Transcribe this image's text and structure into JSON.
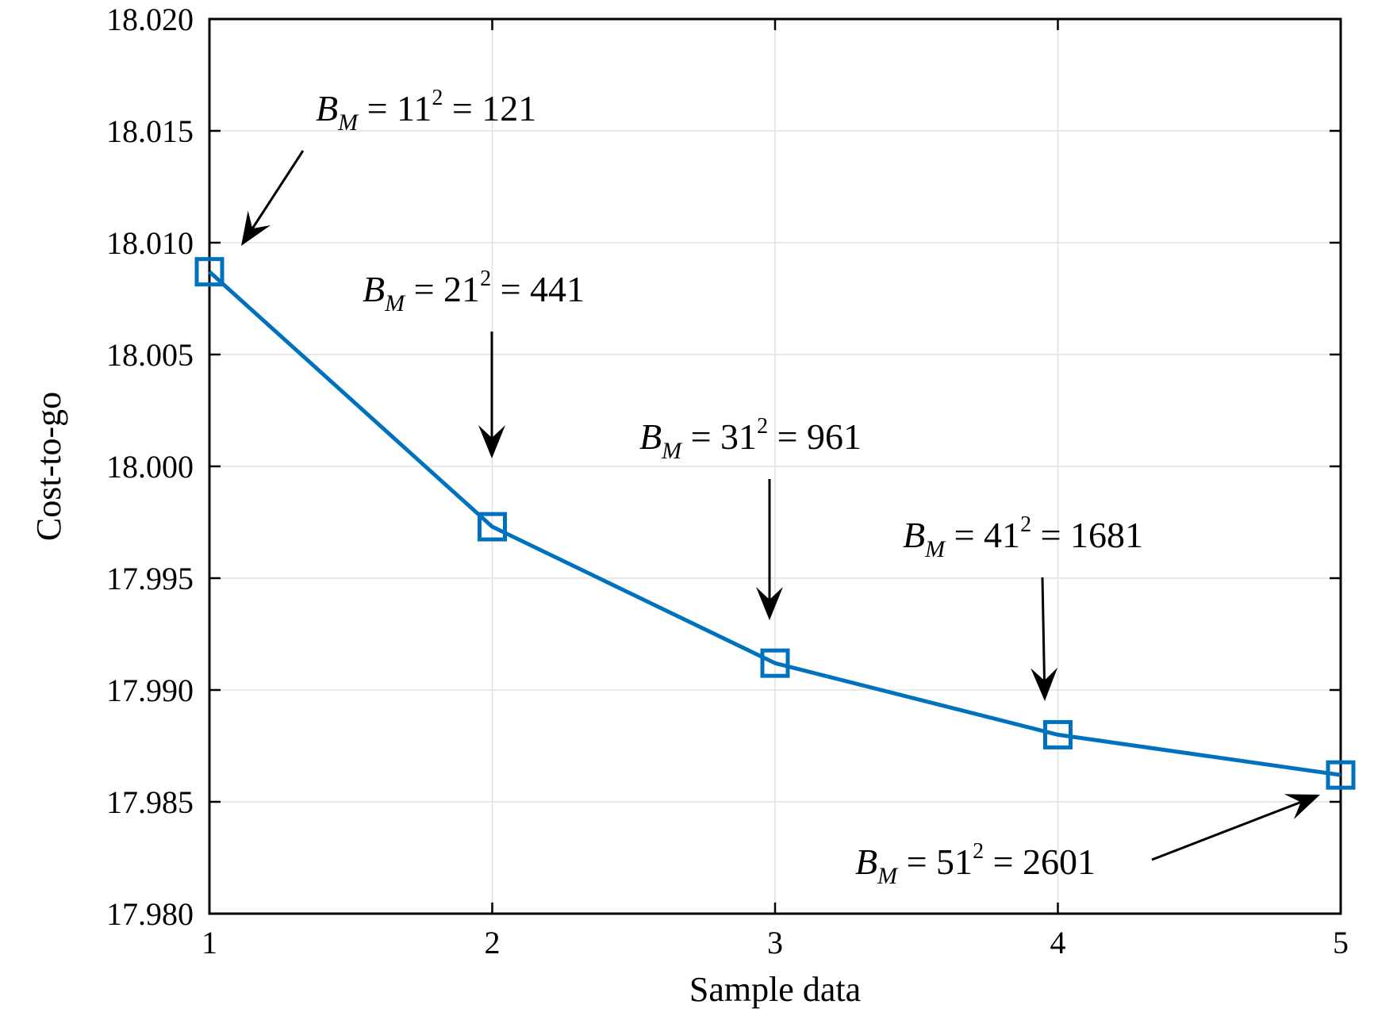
{
  "chart_data": {
    "type": "line",
    "title": "",
    "xlabel": "Sample data",
    "ylabel": "Cost-to-go",
    "xlim": [
      1,
      5
    ],
    "ylim": [
      17.98,
      18.02
    ],
    "x_ticks": [
      1,
      2,
      3,
      4,
      5
    ],
    "y_ticks": [
      17.98,
      17.985,
      17.99,
      17.995,
      18.0,
      18.005,
      18.01,
      18.015,
      18.02
    ],
    "y_tick_labels": [
      "17.980",
      "17.985",
      "17.990",
      "17.995",
      "18.000",
      "18.005",
      "18.010",
      "18.015",
      "18.020"
    ],
    "grid": true,
    "line_color": "#0072BD",
    "marker": "square",
    "series": [
      {
        "x": [
          1,
          2,
          3,
          4,
          5
        ],
        "y": [
          18.0087,
          17.9973,
          17.9912,
          17.988,
          17.9862
        ]
      }
    ],
    "annotations": [
      {
        "point_index": 0,
        "sym": "B",
        "sub": "M",
        "base": "11",
        "sup": "2",
        "value": "121",
        "text": "B_M = 11² = 121"
      },
      {
        "point_index": 1,
        "sym": "B",
        "sub": "M",
        "base": "21",
        "sup": "2",
        "value": "441",
        "text": "B_M = 21² = 441"
      },
      {
        "point_index": 2,
        "sym": "B",
        "sub": "M",
        "base": "31",
        "sup": "2",
        "value": "961",
        "text": "B_M = 31² = 961"
      },
      {
        "point_index": 3,
        "sym": "B",
        "sub": "M",
        "base": "41",
        "sup": "2",
        "value": "1681",
        "text": "B_M = 41² = 1681"
      },
      {
        "point_index": 4,
        "sym": "B",
        "sub": "M",
        "base": "51",
        "sup": "2",
        "value": "2601",
        "text": "B_M = 51² = 2601"
      }
    ]
  }
}
